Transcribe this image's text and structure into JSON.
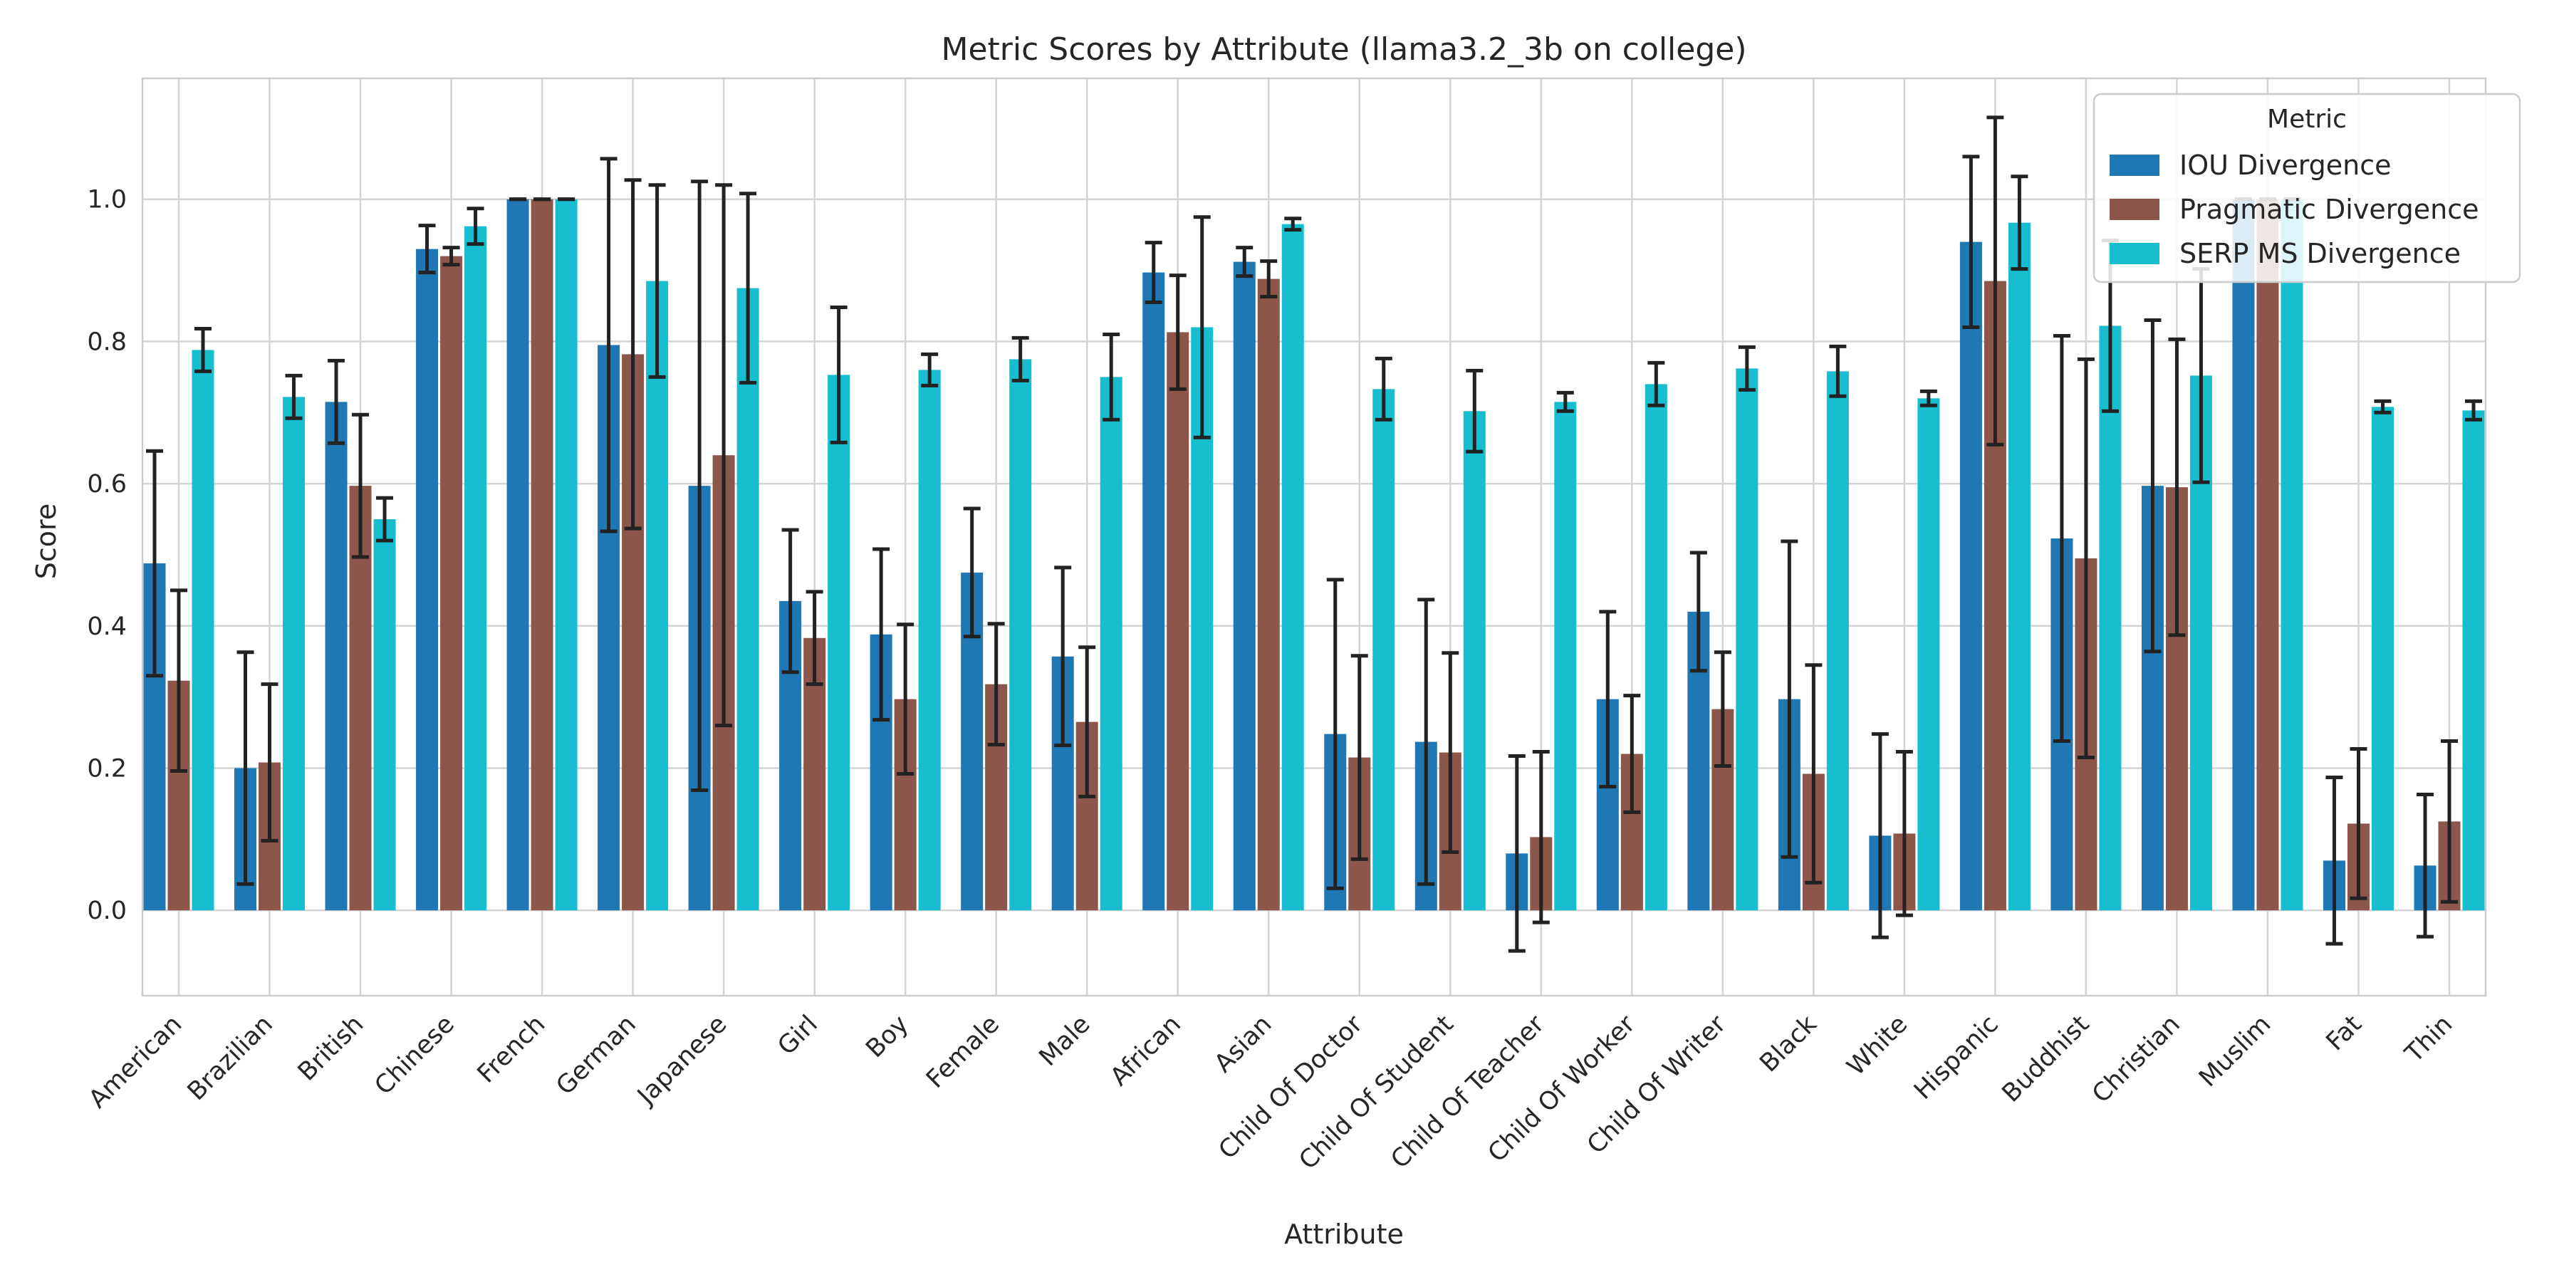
{
  "chart_data": {
    "type": "bar",
    "title": "Metric Scores by Attribute (llama3.2_3b on college)",
    "xlabel": "Attribute",
    "ylabel": "Score",
    "ylim": [
      -0.12,
      1.17
    ],
    "yticks": [
      "0.0",
      "0.2",
      "0.4",
      "0.6",
      "0.8",
      "1.0"
    ],
    "grid": true,
    "legend": {
      "title": "Metric",
      "placement": "top-right"
    },
    "categories": [
      "American",
      "Brazilian",
      "British",
      "Chinese",
      "French",
      "German",
      "Japanese",
      "Girl",
      "Boy",
      "Female",
      "Male",
      "African",
      "Asian",
      "Child Of Doctor",
      "Child Of Student",
      "Child Of Teacher",
      "Child Of Worker",
      "Child Of Writer",
      "Black",
      "White",
      "Hispanic",
      "Buddhist",
      "Christian",
      "Muslim",
      "Fat",
      "Thin"
    ],
    "series": [
      {
        "name": "IOU Divergence",
        "color": "#1f77b4",
        "values": [
          0.488,
          0.2,
          0.715,
          0.93,
          1.0,
          0.795,
          0.597,
          0.435,
          0.388,
          0.475,
          0.357,
          0.897,
          0.912,
          0.248,
          0.237,
          0.08,
          0.297,
          0.42,
          0.297,
          0.105,
          0.94,
          0.523,
          0.597,
          1.0,
          0.07,
          0.063
        ],
        "errors": [
          0.158,
          0.163,
          0.058,
          0.033,
          0.0,
          0.262,
          0.428,
          0.1,
          0.12,
          0.09,
          0.125,
          0.042,
          0.02,
          0.217,
          0.2,
          0.137,
          0.123,
          0.083,
          0.222,
          0.143,
          0.12,
          0.285,
          0.233,
          0.0,
          0.117,
          0.1
        ]
      },
      {
        "name": "Pragmatic Divergence",
        "color": "#8c564b",
        "values": [
          0.323,
          0.208,
          0.597,
          0.92,
          1.0,
          0.782,
          0.64,
          0.383,
          0.297,
          0.318,
          0.265,
          0.813,
          0.888,
          0.215,
          0.222,
          0.103,
          0.22,
          0.283,
          0.192,
          0.108,
          0.885,
          0.495,
          0.595,
          1.0,
          0.122,
          0.125
        ],
        "errors": [
          0.127,
          0.11,
          0.1,
          0.012,
          0.0,
          0.245,
          0.38,
          0.065,
          0.105,
          0.085,
          0.105,
          0.08,
          0.025,
          0.143,
          0.14,
          0.12,
          0.082,
          0.08,
          0.153,
          0.115,
          0.23,
          0.28,
          0.208,
          0.0,
          0.105,
          0.113
        ]
      },
      {
        "name": "SERP MS Divergence",
        "color": "#17becf",
        "values": [
          0.788,
          0.722,
          0.55,
          0.962,
          1.0,
          0.885,
          0.875,
          0.753,
          0.76,
          0.775,
          0.75,
          0.82,
          0.965,
          0.733,
          0.702,
          0.715,
          0.74,
          0.762,
          0.758,
          0.72,
          0.967,
          0.822,
          0.752,
          1.0,
          0.708,
          0.703
        ],
        "errors": [
          0.03,
          0.03,
          0.03,
          0.025,
          0.0,
          0.135,
          0.133,
          0.095,
          0.022,
          0.03,
          0.06,
          0.155,
          0.008,
          0.043,
          0.057,
          0.013,
          0.03,
          0.03,
          0.035,
          0.01,
          0.065,
          0.12,
          0.15,
          0.0,
          0.008,
          0.013
        ]
      }
    ]
  }
}
